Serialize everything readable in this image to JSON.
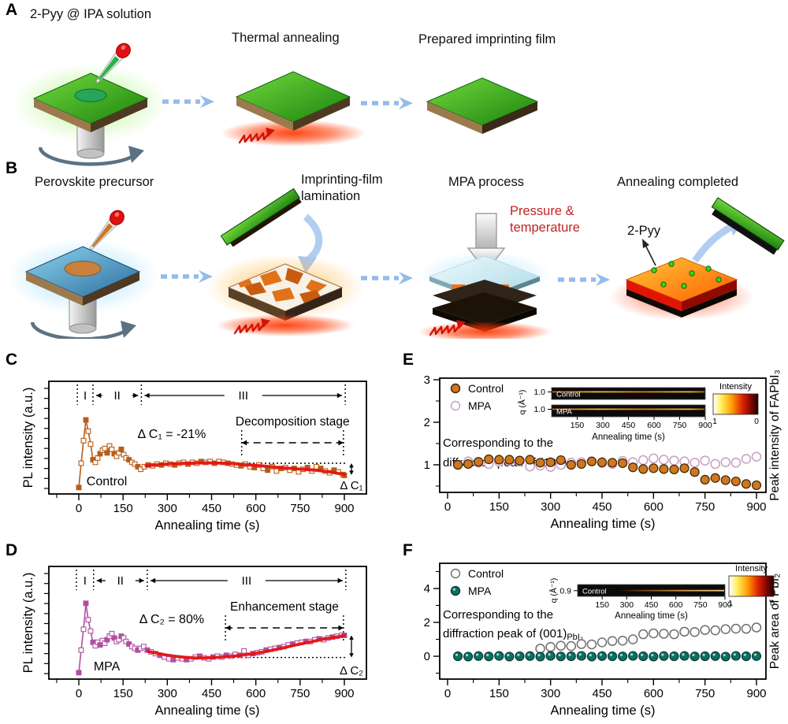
{
  "panel_a": {
    "label": "A",
    "title": "2-Pyy @ IPA solution",
    "steps": [
      "Thermal annealing",
      "Prepared imprinting film"
    ]
  },
  "panel_b": {
    "label": "B",
    "title": "Perovskite precursor",
    "steps": [
      "Imprinting-film lamination",
      "MPA process",
      "Annealing completed"
    ],
    "pressure": "Pressure & temperature",
    "molecule": "2-Pyy"
  },
  "colors": {
    "control_orange": "#d0761f",
    "mpa_pink_outline": "#c79fc1",
    "mpa_teal": "#0e6f63",
    "fit_red": "#e41210",
    "series_c": "#b85c17",
    "series_d": "#b04fa0",
    "arrow_blue": "#93bbec",
    "heat_red": "#d31208"
  },
  "chart_data": [
    {
      "panel": "C",
      "type": "line",
      "xlabel": "Annealing time (s)",
      "ylabel": "PL intensity (a.u.)",
      "xticks": [
        0,
        150,
        300,
        450,
        600,
        750,
        900
      ],
      "xlim": [
        -100,
        975
      ],
      "ylim": [
        0,
        1.25
      ],
      "regions": [
        "I",
        "II",
        "III"
      ],
      "region_bounds": [
        -5,
        48,
        212,
        903
      ],
      "delta_text": "Δ C₁ = -21%",
      "stage_text": "Decomposition stage",
      "stage_span": [
        552,
        897
      ],
      "series_label": "Control",
      "delta_label": "Δ C₁",
      "baseline": 0.3,
      "baseline_from": 430,
      "end": 0.165,
      "color": "#b85c17",
      "fit_color": "#e41210",
      "points": [
        [
          0,
          0.02
        ],
        [
          8,
          0.3
        ],
        [
          16,
          0.56
        ],
        [
          24,
          0.8
        ],
        [
          32,
          0.67
        ],
        [
          40,
          0.52
        ],
        [
          48,
          0.34
        ],
        [
          56,
          0.31
        ],
        [
          64,
          0.36
        ],
        [
          72,
          0.41
        ],
        [
          80,
          0.45
        ],
        [
          88,
          0.47
        ],
        [
          96,
          0.42
        ],
        [
          104,
          0.5
        ],
        [
          112,
          0.46
        ],
        [
          120,
          0.41
        ],
        [
          128,
          0.38
        ],
        [
          136,
          0.42
        ],
        [
          144,
          0.46
        ],
        [
          152,
          0.4
        ],
        [
          160,
          0.36
        ],
        [
          170,
          0.34
        ],
        [
          180,
          0.31
        ],
        [
          190,
          0.29
        ],
        [
          200,
          0.26
        ],
        [
          210,
          0.23
        ],
        [
          222,
          0.26
        ],
        [
          235,
          0.28
        ],
        [
          250,
          0.27
        ],
        [
          265,
          0.29
        ],
        [
          280,
          0.28
        ],
        [
          295,
          0.3
        ],
        [
          310,
          0.29
        ],
        [
          325,
          0.28
        ],
        [
          340,
          0.3
        ],
        [
          355,
          0.31
        ],
        [
          370,
          0.29
        ],
        [
          385,
          0.31
        ],
        [
          400,
          0.3
        ],
        [
          415,
          0.32
        ],
        [
          430,
          0.31
        ],
        [
          445,
          0.32
        ],
        [
          460,
          0.3
        ],
        [
          475,
          0.32
        ],
        [
          490,
          0.31
        ],
        [
          505,
          0.3
        ],
        [
          520,
          0.29
        ],
        [
          535,
          0.28
        ],
        [
          550,
          0.27
        ],
        [
          565,
          0.29
        ],
        [
          580,
          0.26
        ],
        [
          595,
          0.25
        ],
        [
          610,
          0.28
        ],
        [
          625,
          0.24
        ],
        [
          640,
          0.22
        ],
        [
          655,
          0.26
        ],
        [
          670,
          0.21
        ],
        [
          685,
          0.24
        ],
        [
          700,
          0.25
        ],
        [
          715,
          0.22
        ],
        [
          730,
          0.24
        ],
        [
          745,
          0.2
        ],
        [
          760,
          0.23
        ],
        [
          775,
          0.25
        ],
        [
          790,
          0.21
        ],
        [
          805,
          0.26
        ],
        [
          820,
          0.24
        ],
        [
          835,
          0.21
        ],
        [
          850,
          0.19
        ],
        [
          865,
          0.22
        ],
        [
          880,
          0.2
        ],
        [
          895,
          0.17
        ],
        [
          900,
          0.16
        ]
      ],
      "fit": [
        [
          228,
          0.27
        ],
        [
          290,
          0.29
        ],
        [
          360,
          0.3
        ],
        [
          430,
          0.305
        ],
        [
          500,
          0.3
        ],
        [
          560,
          0.285
        ],
        [
          620,
          0.27
        ],
        [
          680,
          0.25
        ],
        [
          740,
          0.235
        ],
        [
          800,
          0.22
        ],
        [
          850,
          0.2
        ],
        [
          900,
          0.17
        ]
      ]
    },
    {
      "panel": "D",
      "type": "line",
      "xlabel": "Annealing time (s)",
      "ylabel": "PL intensity (a.u.)",
      "xticks": [
        0,
        150,
        300,
        450,
        600,
        750,
        900
      ],
      "xlim": [
        -100,
        975
      ],
      "ylim": [
        0,
        1.25
      ],
      "regions": [
        "I",
        "II",
        "III"
      ],
      "region_bounds": [
        -8,
        50,
        232,
        905
      ],
      "delta_text": "Δ C₂ = 80%",
      "stage_text": "Enhancement stage",
      "stage_span": [
        497,
        897
      ],
      "series_label": "MPA",
      "delta_label": "Δ C₂",
      "baseline": 0.195,
      "baseline_from": 430,
      "end": 0.45,
      "color": "#b04fa0",
      "fit_color": "#e41210",
      "points": [
        [
          0,
          0.02
        ],
        [
          8,
          0.28
        ],
        [
          16,
          0.52
        ],
        [
          24,
          0.82
        ],
        [
          32,
          0.63
        ],
        [
          40,
          0.5
        ],
        [
          48,
          0.37
        ],
        [
          56,
          0.33
        ],
        [
          64,
          0.37
        ],
        [
          72,
          0.34
        ],
        [
          80,
          0.39
        ],
        [
          88,
          0.36
        ],
        [
          96,
          0.4
        ],
        [
          104,
          0.44
        ],
        [
          112,
          0.47
        ],
        [
          120,
          0.42
        ],
        [
          128,
          0.38
        ],
        [
          136,
          0.4
        ],
        [
          144,
          0.44
        ],
        [
          152,
          0.42
        ],
        [
          160,
          0.38
        ],
        [
          170,
          0.35
        ],
        [
          180,
          0.32
        ],
        [
          190,
          0.3
        ],
        [
          200,
          0.28
        ],
        [
          210,
          0.3
        ],
        [
          220,
          0.32
        ],
        [
          232,
          0.28
        ],
        [
          245,
          0.26
        ],
        [
          260,
          0.24
        ],
        [
          275,
          0.22
        ],
        [
          290,
          0.2
        ],
        [
          305,
          0.18
        ],
        [
          320,
          0.17
        ],
        [
          335,
          0.19
        ],
        [
          350,
          0.18
        ],
        [
          365,
          0.17
        ],
        [
          380,
          0.18
        ],
        [
          395,
          0.2
        ],
        [
          410,
          0.21
        ],
        [
          425,
          0.19
        ],
        [
          440,
          0.18
        ],
        [
          455,
          0.2
        ],
        [
          470,
          0.21
        ],
        [
          485,
          0.2
        ],
        [
          500,
          0.22
        ],
        [
          515,
          0.21
        ],
        [
          530,
          0.23
        ],
        [
          545,
          0.22
        ],
        [
          560,
          0.27
        ],
        [
          575,
          0.22
        ],
        [
          590,
          0.24
        ],
        [
          605,
          0.25
        ],
        [
          620,
          0.26
        ],
        [
          635,
          0.28
        ],
        [
          650,
          0.29
        ],
        [
          665,
          0.3
        ],
        [
          680,
          0.31
        ],
        [
          695,
          0.32
        ],
        [
          710,
          0.34
        ],
        [
          725,
          0.35
        ],
        [
          740,
          0.36
        ],
        [
          755,
          0.37
        ],
        [
          770,
          0.38
        ],
        [
          785,
          0.38
        ],
        [
          800,
          0.4
        ],
        [
          815,
          0.41
        ],
        [
          830,
          0.4
        ],
        [
          845,
          0.42
        ],
        [
          860,
          0.43
        ],
        [
          875,
          0.44
        ],
        [
          890,
          0.45
        ],
        [
          900,
          0.45
        ]
      ],
      "fit": [
        [
          235,
          0.265
        ],
        [
          285,
          0.23
        ],
        [
          335,
          0.205
        ],
        [
          385,
          0.19
        ],
        [
          435,
          0.19
        ],
        [
          485,
          0.2
        ],
        [
          535,
          0.215
        ],
        [
          585,
          0.235
        ],
        [
          635,
          0.265
        ],
        [
          685,
          0.3
        ],
        [
          735,
          0.34
        ],
        [
          785,
          0.375
        ],
        [
          835,
          0.41
        ],
        [
          880,
          0.435
        ],
        [
          900,
          0.45
        ]
      ]
    },
    {
      "panel": "E",
      "type": "scatter",
      "xlabel": "Annealing time (s)",
      "ylabel_right": "Peak intensity of FAPbI₃",
      "xticks": [
        0,
        150,
        300,
        450,
        600,
        750,
        900
      ],
      "yticks": [
        1,
        2,
        3
      ],
      "yminor": [
        0.5,
        1.5,
        2.5
      ],
      "ylim": [
        0.35,
        3.05
      ],
      "note": [
        "Corresponding to the",
        "diffraction peak of (100)"
      ],
      "note_sub": "C",
      "x": [
        30,
        60,
        90,
        120,
        150,
        180,
        210,
        240,
        270,
        300,
        330,
        360,
        390,
        420,
        450,
        480,
        510,
        540,
        570,
        600,
        630,
        660,
        690,
        720,
        750,
        780,
        810,
        840,
        870,
        900
      ],
      "series": [
        {
          "name": "Control",
          "fill": "#d0761f",
          "stroke": "#3a2406",
          "values": [
            1.0,
            1.02,
            1.07,
            1.13,
            1.12,
            1.12,
            1.1,
            1.12,
            1.05,
            1.06,
            1.11,
            1.0,
            1.02,
            1.08,
            1.06,
            1.05,
            1.04,
            0.94,
            0.9,
            0.92,
            0.9,
            0.89,
            0.92,
            0.83,
            0.65,
            0.69,
            0.64,
            0.61,
            0.55,
            0.52
          ]
        },
        {
          "name": "MPA",
          "fill": "#ffffff",
          "stroke": "#c79fc1",
          "values": [
            1.0,
            1.08,
            1.05,
            1.02,
            1.07,
            1.09,
            1.08,
            0.96,
            0.98,
            0.95,
            1.0,
            1.05,
            1.06,
            1.08,
            1.04,
            1.02,
            1.09,
            1.06,
            1.11,
            1.15,
            1.12,
            1.1,
            1.08,
            1.05,
            1.1,
            1.02,
            1.06,
            1.05,
            1.14,
            1.19
          ]
        }
      ],
      "inset": {
        "strips": [
          {
            "label": "Control",
            "ytick": "1.0"
          },
          {
            "label": "MPA",
            "ytick": "1.0"
          }
        ],
        "qlabel": "q (Å⁻¹)",
        "xticks": [
          150,
          300,
          450,
          600,
          750,
          900
        ],
        "xlabel": "Annealing time (s)",
        "colorbar": {
          "label": "Intensity",
          "left": "1",
          "right": "0"
        }
      }
    },
    {
      "panel": "F",
      "type": "scatter",
      "xlabel": "Annealing time (s)",
      "ylabel_right": "Peak area of PbI₂",
      "xticks": [
        0,
        150,
        300,
        450,
        600,
        750,
        900
      ],
      "yticks": [
        0,
        2,
        4
      ],
      "yminor": [
        -1,
        1,
        3,
        5
      ],
      "ylim": [
        -1.35,
        5.5
      ],
      "note": [
        "Corresponding to the",
        "diffraction peak of (001)"
      ],
      "note_sub": "PbI₂",
      "x": [
        30,
        60,
        90,
        120,
        150,
        180,
        210,
        240,
        270,
        300,
        330,
        360,
        390,
        420,
        450,
        480,
        510,
        540,
        570,
        600,
        630,
        660,
        690,
        720,
        750,
        780,
        810,
        840,
        870,
        900
      ],
      "series": [
        {
          "name": "Control",
          "fill": "#ffffff",
          "stroke": "#6e6e6e",
          "values": [
            null,
            null,
            null,
            null,
            null,
            null,
            null,
            null,
            0.45,
            0.55,
            0.62,
            0.6,
            0.72,
            0.7,
            0.82,
            0.9,
            0.92,
            1.0,
            1.3,
            1.35,
            1.33,
            1.3,
            1.45,
            1.43,
            1.55,
            1.53,
            1.6,
            1.63,
            1.62,
            1.7
          ]
        },
        {
          "name": "MPA",
          "fill": "#0e6f63",
          "stroke": "#083c34",
          "highlight": true,
          "values": [
            0,
            -0.02,
            0.01,
            -0.01,
            0.02,
            -0.02,
            0,
            0.01,
            -0.02,
            0.02,
            -0.01,
            0,
            0.02,
            -0.02,
            0.01,
            0,
            -0.01,
            0.02,
            0,
            -0.02,
            0.01,
            0,
            0.02,
            -0.01,
            0,
            0.01,
            -0.02,
            0.02,
            0,
            0.01
          ]
        }
      ],
      "inset": {
        "strips": [
          {
            "label": "Control",
            "ytick": "0.9"
          }
        ],
        "qlabel": "q (Å⁻¹)",
        "xticks": [
          150,
          300,
          450,
          600,
          750,
          900
        ],
        "xlabel": "Annealing time (s)",
        "colorbar": {
          "label": "Intensity",
          "left": "1",
          "right": "0"
        }
      }
    }
  ]
}
